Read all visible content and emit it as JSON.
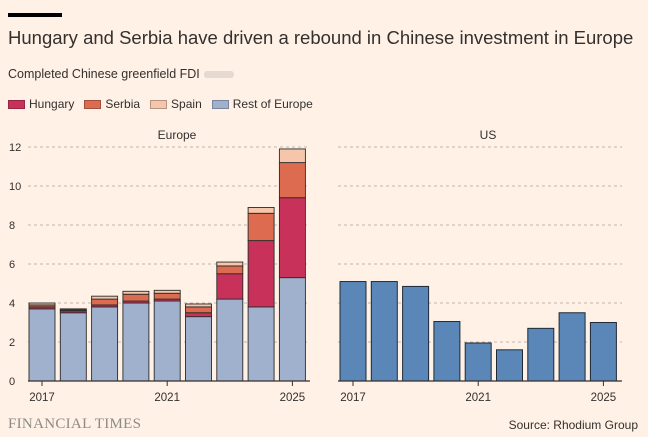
{
  "title": "Hungary and Serbia have driven a rebound in Chinese investment in Europe",
  "subtitle": "Completed Chinese greenfield FDI",
  "source": "Source: Rhodium Group",
  "brand": "FINANCIAL TIMES",
  "colors": {
    "Hungary": "#c8325a",
    "Serbia": "#dd6b50",
    "Spain": "#f5c6ac",
    "Rest of Europe": "#9fb1cc",
    "US": "#5a87b8",
    "grid": "#bdb6af",
    "axis": "#33302e"
  },
  "chart_data": [
    {
      "type": "bar",
      "stacked": true,
      "panel_title": "Europe",
      "x": [
        2017,
        2018,
        2019,
        2020,
        2021,
        2022,
        2023,
        2024,
        2025
      ],
      "x_tick_labels": [
        "2017",
        "2021",
        "2025"
      ],
      "y_ticks": [
        0,
        2,
        4,
        6,
        8,
        10,
        12
      ],
      "ylim": [
        0,
        12
      ],
      "series": [
        {
          "name": "Rest of Europe",
          "values": [
            3.7,
            3.5,
            3.8,
            4.0,
            4.1,
            3.3,
            4.2,
            3.8,
            5.3
          ]
        },
        {
          "name": "Hungary",
          "values": [
            0.1,
            0.1,
            0.1,
            0.1,
            0.1,
            0.2,
            1.3,
            3.4,
            4.1
          ]
        },
        {
          "name": "Serbia",
          "values": [
            0.1,
            0.05,
            0.3,
            0.35,
            0.3,
            0.3,
            0.4,
            1.4,
            1.8
          ]
        },
        {
          "name": "Spain",
          "values": [
            0.1,
            0.05,
            0.15,
            0.15,
            0.15,
            0.15,
            0.2,
            0.3,
            0.7
          ]
        }
      ]
    },
    {
      "type": "bar",
      "panel_title": "US",
      "x": [
        2017,
        2018,
        2019,
        2020,
        2021,
        2022,
        2023,
        2024,
        2025
      ],
      "x_tick_labels": [
        "2017",
        "2021",
        "2025"
      ],
      "ylim": [
        0,
        12
      ],
      "series": [
        {
          "name": "US",
          "values": [
            5.1,
            5.1,
            4.85,
            3.05,
            1.95,
            1.6,
            2.7,
            3.5,
            3.0
          ]
        }
      ]
    }
  ],
  "legend": [
    "Hungary",
    "Serbia",
    "Spain",
    "Rest of Europe"
  ]
}
